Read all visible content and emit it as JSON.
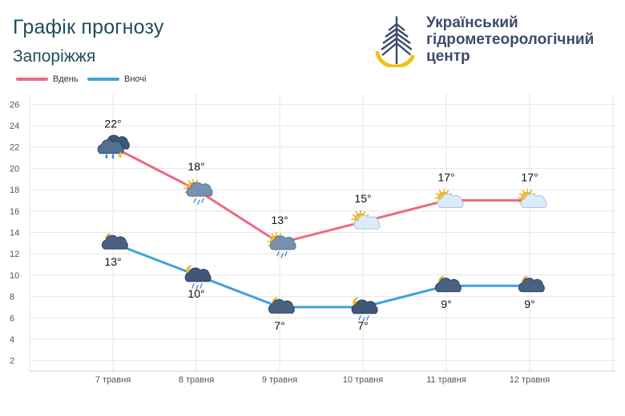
{
  "header": {
    "title": "Графік прогнозу",
    "subtitle": "Запоріжжя"
  },
  "brand": {
    "line1": "Український",
    "line2": "гідрометеорологічний",
    "line3": "центр"
  },
  "colors": {
    "day": "#ec6a82",
    "night": "#3fa2dc",
    "text": "#1f4f5a",
    "brand": "#3e4a6e",
    "grid": "#e6e6e6"
  },
  "chart_data": {
    "type": "line",
    "categories": [
      "7 травня",
      "8 травня",
      "9 травня",
      "10 травня",
      "11 травня",
      "12 травня"
    ],
    "series": [
      {
        "name": "Вдень",
        "values": [
          22,
          18,
          13,
          15,
          17,
          17
        ],
        "labels": [
          "22°",
          "18°",
          "13°",
          "15°",
          "17°",
          "17°"
        ],
        "icons": [
          "storm-cloud-rain-lightning-icon",
          "sun-cloud-rain-icon",
          "sun-cloud-rain-icon",
          "sun-cloud-icon",
          "sun-cloud-icon",
          "sun-cloud-icon"
        ]
      },
      {
        "name": "Вночі",
        "values": [
          13,
          10,
          7,
          7,
          9,
          9
        ],
        "labels": [
          "13°",
          "10°",
          "7°",
          "7°",
          "9°",
          "9°"
        ],
        "icons": [
          "moon-cloud-icon",
          "moon-cloud-rain-icon",
          "moon-cloud-icon",
          "moon-cloud-rain-icon",
          "moon-cloud-icon",
          "moon-cloud-icon"
        ]
      }
    ],
    "ylim": [
      1,
      27
    ],
    "yticks": [
      2,
      4,
      6,
      8,
      10,
      12,
      14,
      16,
      18,
      20,
      22,
      24,
      26
    ],
    "grid": true,
    "legend": "top-left"
  }
}
